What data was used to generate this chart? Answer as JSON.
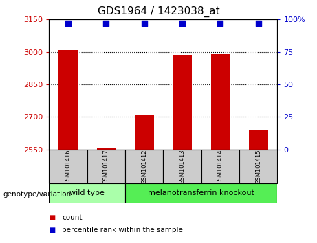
{
  "title": "GDS1964 / 1423038_at",
  "samples": [
    "GSM101416",
    "GSM101417",
    "GSM101412",
    "GSM101413",
    "GSM101414",
    "GSM101415"
  ],
  "counts": [
    3010,
    2558,
    2710,
    2985,
    2992,
    2640
  ],
  "percentile_ranks": [
    97,
    97,
    97,
    97,
    97,
    97
  ],
  "ylim_left": [
    2550,
    3150
  ],
  "ylim_right": [
    0,
    100
  ],
  "yticks_left": [
    2550,
    2700,
    2850,
    3000,
    3150
  ],
  "yticks_right": [
    0,
    25,
    50,
    75,
    100
  ],
  "ytick_labels_right": [
    "0",
    "25",
    "50",
    "75",
    "100%"
  ],
  "bar_color": "#cc0000",
  "dot_color": "#0000cc",
  "grid_color": "#000000",
  "group1_label": "wild type",
  "group2_label": "melanotransferrin knockout",
  "group1_indices": [
    0,
    1
  ],
  "group2_indices": [
    2,
    3,
    4,
    5
  ],
  "group1_color": "#aaffaa",
  "group2_color": "#55ee55",
  "sample_box_color": "#cccccc",
  "bar_width": 0.5,
  "dot_size": 30,
  "legend_count_color": "#cc0000",
  "legend_pct_color": "#0000cc",
  "left_tick_color": "#cc0000",
  "right_tick_color": "#0000cc",
  "background_color": "#ffffff",
  "genotype_label": "genotype/variation"
}
